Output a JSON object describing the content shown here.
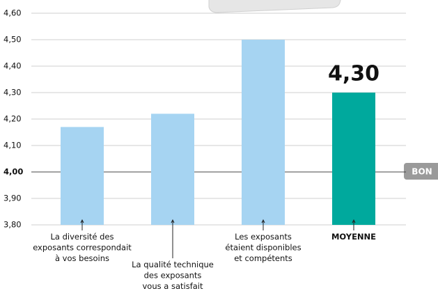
{
  "chart_data": {
    "type": "bar",
    "categories": [
      "La diversité des\nexposants correspondait\nà vos besoins",
      "La qualité technique\ndes exposants\nvous a satisfait",
      "Les exposants\nétaient disponibles\net compétents",
      "MOYENNE"
    ],
    "values": [
      4.17,
      4.22,
      4.5,
      4.3
    ],
    "value_labels": [
      null,
      null,
      null,
      "4,30"
    ],
    "colors": [
      "#a6d4f2",
      "#a6d4f2",
      "#a6d4f2",
      "#00a99d"
    ],
    "ylim": [
      3.8,
      4.6
    ],
    "yticks": [
      {
        "value": 3.8,
        "label": "3,80"
      },
      {
        "value": 3.9,
        "label": "3,90"
      },
      {
        "value": 4.0,
        "label": "4,00"
      },
      {
        "value": 4.1,
        "label": "4,10"
      },
      {
        "value": 4.2,
        "label": "4,20"
      },
      {
        "value": 4.3,
        "label": "4,30"
      },
      {
        "value": 4.4,
        "label": "4,40"
      },
      {
        "value": 4.5,
        "label": "4,50"
      },
      {
        "value": 4.6,
        "label": "4,60"
      }
    ],
    "grid": true,
    "badge": "BON"
  }
}
